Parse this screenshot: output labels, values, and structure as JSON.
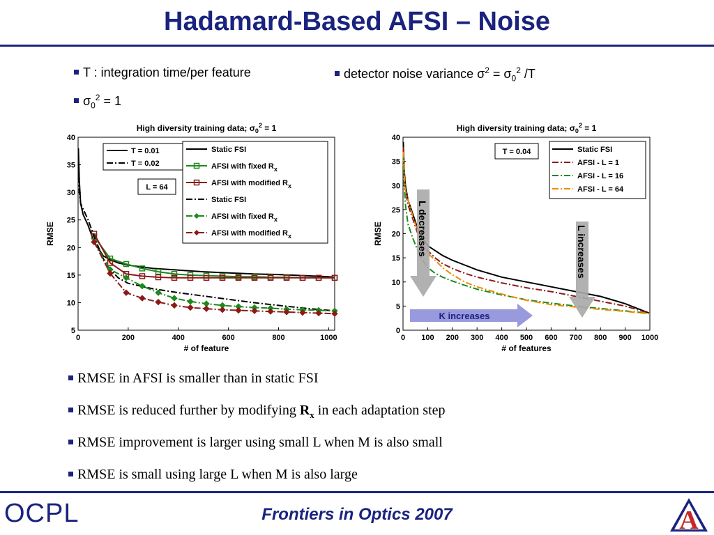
{
  "slide": {
    "title": "Hadamard-Based AFSI – Noise",
    "bullets_top": [
      {
        "pre": "T : integration time/per feature"
      },
      {
        "pre": "σ",
        "sub": "0",
        "sup": "2",
        "post": " = 1"
      },
      {
        "pre": "detector noise variance σ",
        "sup": "2",
        "mid": " = σ",
        "sub": "0",
        "sup2": "2",
        "post": " /T"
      }
    ],
    "bullets_bottom": [
      {
        "text": "RMSE in AFSI is smaller than in static FSI"
      },
      {
        "pre": "RMSE is reduced further by modifying ",
        "bold": "R",
        "sub": "x",
        "post": " in each adaptation step"
      },
      {
        "text": "RMSE improvement is larger using small L when M is also small"
      },
      {
        "text": "RMSE is small using large L when M is also large"
      }
    ],
    "footer": "Frontiers in Optics 2007",
    "logo_left": "OCPL",
    "logo_right": "A",
    "colors": {
      "accent": "#1a237e",
      "logo_red": "#c62828"
    }
  },
  "chart_data": [
    {
      "type": "line",
      "title": "High diversity training data; σ",
      "title_sub": "0",
      "title_sup": "2",
      "title_post": " = 1",
      "xlabel": "# of feature",
      "ylabel": "RMSE",
      "xlim": [
        0,
        1024
      ],
      "ylim": [
        5,
        40
      ],
      "xticks": [
        0,
        200,
        400,
        600,
        800,
        1000
      ],
      "yticks": [
        5,
        10,
        15,
        20,
        25,
        30,
        35,
        40
      ],
      "legend_small": [
        "T = 0.01",
        "T = 0.02"
      ],
      "annotation": "L = 64",
      "legend": [
        {
          "label": "Static FSI"
        },
        {
          "label": "AFSI with fixed R",
          "sub": "x"
        },
        {
          "label": "AFSI with modified R",
          "sub": "x"
        },
        {
          "label": "Static FSI"
        },
        {
          "label": "AFSI with fixed R",
          "sub": "x"
        },
        {
          "label": "AFSI with modified R",
          "sub": "x"
        }
      ],
      "series": [
        {
          "color": "#000000",
          "style": "solid",
          "marker": "none",
          "x": [
            1,
            5,
            10,
            20,
            40,
            64,
            100,
            128,
            160,
            200,
            250,
            300,
            400,
            500,
            600,
            700,
            800,
            900,
            1000,
            1024
          ],
          "y": [
            38,
            32,
            28,
            26,
            24,
            21,
            18.5,
            17.8,
            17.2,
            16.8,
            16.5,
            16.2,
            15.9,
            15.6,
            15.4,
            15.2,
            15.1,
            14.9,
            14.7,
            14.6
          ]
        },
        {
          "color": "#1b8a1b",
          "style": "solid",
          "marker": "square",
          "x": [
            64,
            128,
            192,
            256,
            320,
            384,
            448,
            512,
            576,
            640,
            704,
            768,
            832,
            896,
            960,
            1024
          ],
          "y": [
            22,
            18,
            17,
            16.2,
            15.6,
            15.2,
            15,
            14.9,
            14.8,
            14.7,
            14.7,
            14.6,
            14.6,
            14.5,
            14.5,
            14.5
          ]
        },
        {
          "color": "#8b1a1a",
          "style": "solid",
          "marker": "square",
          "x": [
            64,
            128,
            192,
            256,
            320,
            384,
            448,
            512,
            576,
            640,
            704,
            768,
            832,
            896,
            960,
            1024
          ],
          "y": [
            22.5,
            17.2,
            15.2,
            14.8,
            14.6,
            14.5,
            14.5,
            14.5,
            14.5,
            14.5,
            14.5,
            14.5,
            14.5,
            14.5,
            14.5,
            14.5
          ]
        },
        {
          "color": "#000000",
          "style": "dashdot",
          "marker": "none",
          "x": [
            1,
            5,
            10,
            20,
            40,
            64,
            100,
            128,
            160,
            200,
            250,
            300,
            400,
            500,
            600,
            700,
            800,
            900,
            1000,
            1024
          ],
          "y": [
            35,
            30,
            28,
            27,
            25,
            22,
            18,
            16,
            14.5,
            13.5,
            13,
            12.5,
            11.8,
            11.2,
            10.6,
            10,
            9.5,
            9,
            8.6,
            8.5
          ]
        },
        {
          "color": "#1b8a1b",
          "style": "dashdot",
          "marker": "diamond",
          "x": [
            64,
            128,
            192,
            256,
            320,
            384,
            448,
            512,
            576,
            640,
            704,
            768,
            832,
            896,
            960,
            1024
          ],
          "y": [
            21,
            16,
            14.5,
            13,
            11.8,
            10.8,
            10.2,
            9.8,
            9.5,
            9.3,
            9.1,
            9,
            8.8,
            8.7,
            8.6,
            8.5
          ]
        },
        {
          "color": "#8b1a1a",
          "style": "dashdot",
          "marker": "diamond",
          "x": [
            64,
            128,
            192,
            256,
            320,
            384,
            448,
            512,
            576,
            640,
            704,
            768,
            832,
            896,
            960,
            1024
          ],
          "y": [
            21,
            15.3,
            11.8,
            10.8,
            10.1,
            9.5,
            9.1,
            8.9,
            8.7,
            8.6,
            8.5,
            8.4,
            8.3,
            8.2,
            8.1,
            8
          ]
        }
      ]
    },
    {
      "type": "line",
      "title": "High diversity training data; σ",
      "title_sub": "0",
      "title_sup": "2",
      "title_post": " = 1",
      "xlabel": "# of features",
      "ylabel": "RMSE",
      "xlim": [
        0,
        1000
      ],
      "ylim": [
        0,
        40
      ],
      "xticks": [
        0,
        100,
        200,
        300,
        400,
        500,
        600,
        700,
        800,
        900,
        1000
      ],
      "yticks": [
        0,
        5,
        10,
        15,
        20,
        25,
        30,
        35,
        40
      ],
      "annotation": "T = 0.04",
      "legend": [
        {
          "label": "Static FSI"
        },
        {
          "label": "AFSI - L = 1"
        },
        {
          "label": "AFSI - L = 16"
        },
        {
          "label": "AFSI - L = 64"
        }
      ],
      "arrows": [
        "L decreases",
        "K increases",
        "L increases"
      ],
      "series": [
        {
          "color": "#000000",
          "style": "solid",
          "x": [
            1,
            5,
            10,
            20,
            40,
            60,
            80,
            100,
            130,
            160,
            200,
            250,
            300,
            400,
            500,
            600,
            700,
            800,
            900,
            1000
          ],
          "y": [
            39,
            33,
            30,
            27,
            24,
            21,
            19,
            17.5,
            16.5,
            15.5,
            14.5,
            13.5,
            12.5,
            11,
            10,
            9,
            8,
            7,
            5.5,
            3.5
          ]
        },
        {
          "color": "#8b1a1a",
          "style": "dashdot",
          "x": [
            1,
            5,
            10,
            20,
            40,
            60,
            80,
            100,
            130,
            160,
            200,
            250,
            300,
            400,
            500,
            600,
            700,
            800,
            900,
            1000
          ],
          "y": [
            38,
            32,
            29,
            26,
            23,
            20,
            18,
            16.5,
            15,
            13.8,
            12.8,
            11.8,
            11,
            9.8,
            8.8,
            8,
            7,
            6,
            5,
            3.5
          ]
        },
        {
          "color": "#1b8a1b",
          "style": "dashdot",
          "x": [
            1,
            5,
            10,
            20,
            40,
            60,
            80,
            100,
            130,
            160,
            200,
            250,
            300,
            400,
            500,
            600,
            700,
            800,
            900,
            1000
          ],
          "y": [
            36,
            30,
            26,
            22,
            19,
            16.5,
            14.5,
            13,
            11.8,
            11,
            10.2,
            9.3,
            8.5,
            7.3,
            6.3,
            5.6,
            5,
            4.5,
            4,
            3.5
          ]
        },
        {
          "color": "#f08c00",
          "style": "dashdot",
          "x": [
            1,
            5,
            10,
            20,
            40,
            60,
            80,
            100,
            130,
            160,
            200,
            250,
            300,
            400,
            500,
            600,
            700,
            800,
            900,
            1000
          ],
          "y": [
            37,
            32,
            29,
            27,
            23.5,
            20.5,
            18,
            16,
            14.5,
            13,
            11.5,
            10,
            9,
            7.5,
            6.2,
            5.3,
            4.8,
            4.3,
            3.9,
            3.4
          ]
        }
      ]
    }
  ]
}
